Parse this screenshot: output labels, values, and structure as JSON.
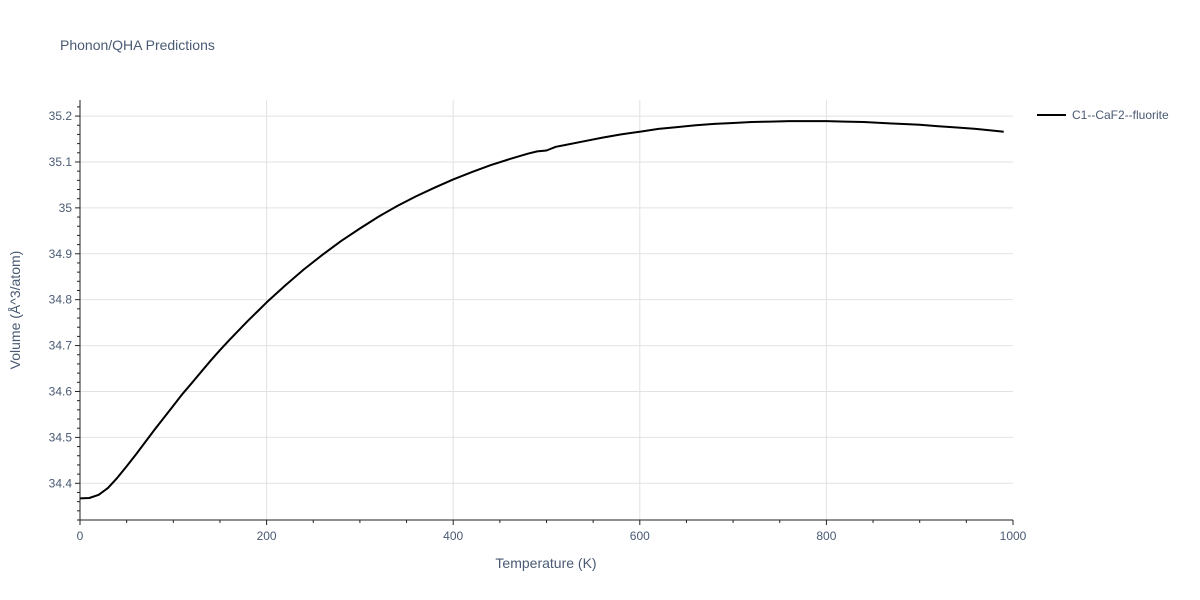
{
  "chart_data": {
    "type": "line",
    "title": "Phonon/QHA Predictions",
    "xlabel": "Temperature (K)",
    "ylabel": "Volume (Å^3/atom)",
    "xlim": [
      0,
      1000
    ],
    "ylim": [
      34.32,
      35.235
    ],
    "x_ticks": [
      0,
      200,
      400,
      600,
      800,
      1000
    ],
    "x_tick_labels": [
      "0",
      "200",
      "400",
      "600",
      "800",
      "1000"
    ],
    "y_ticks": [
      34.4,
      34.5,
      34.6,
      34.7,
      34.8,
      34.9,
      35.0,
      35.1,
      35.2
    ],
    "y_tick_labels": [
      "34.4",
      "34.5",
      "34.6",
      "34.7",
      "34.8",
      "34.9",
      "35",
      "35.1",
      "35.2"
    ],
    "grid": true,
    "legend_position": "top-right-outside",
    "series": [
      {
        "name": "C1--CaF2--fluorite",
        "color": "#000000",
        "x": [
          0,
          10,
          20,
          30,
          40,
          50,
          60,
          70,
          80,
          90,
          100,
          110,
          120,
          130,
          140,
          150,
          160,
          170,
          180,
          190,
          200,
          220,
          240,
          260,
          280,
          300,
          320,
          340,
          360,
          380,
          400,
          420,
          440,
          460,
          480,
          490,
          500,
          510,
          520,
          540,
          560,
          580,
          600,
          620,
          640,
          660,
          680,
          700,
          720,
          740,
          760,
          780,
          800,
          820,
          840,
          860,
          880,
          900,
          920,
          940,
          960,
          980,
          990
        ],
        "y": [
          34.367,
          34.368,
          34.375,
          34.39,
          34.412,
          34.437,
          34.463,
          34.49,
          34.517,
          34.543,
          34.569,
          34.595,
          34.619,
          34.643,
          34.667,
          34.69,
          34.712,
          34.733,
          34.754,
          34.774,
          34.794,
          34.831,
          34.866,
          34.898,
          34.928,
          34.955,
          34.981,
          35.004,
          35.025,
          35.044,
          35.062,
          35.078,
          35.093,
          35.106,
          35.118,
          35.123,
          35.125,
          35.133,
          35.137,
          35.145,
          35.153,
          35.16,
          35.166,
          35.172,
          35.176,
          35.18,
          35.183,
          35.185,
          35.187,
          35.188,
          35.189,
          35.189,
          35.189,
          35.188,
          35.187,
          35.185,
          35.183,
          35.181,
          35.178,
          35.175,
          35.172,
          35.168,
          35.166
        ]
      }
    ]
  }
}
